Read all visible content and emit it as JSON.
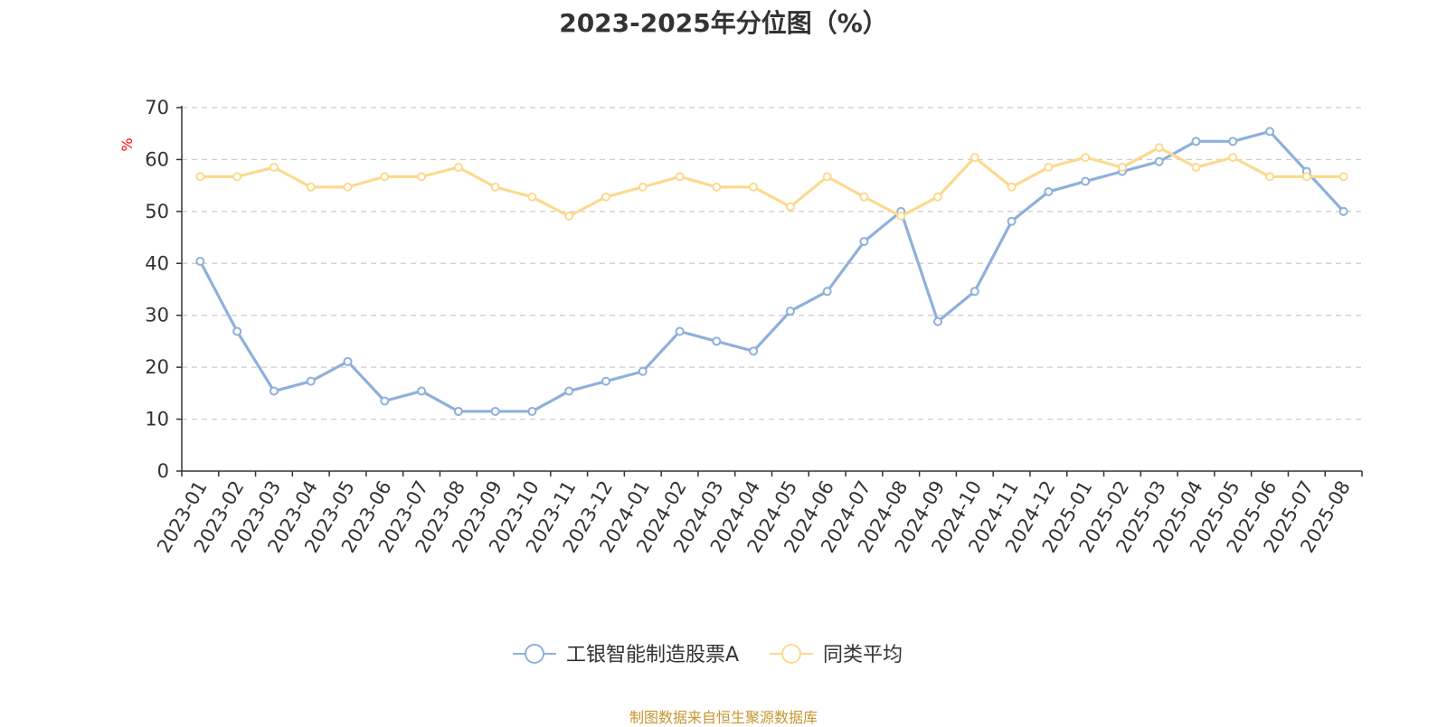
{
  "chart_data": {
    "type": "line",
    "title": "2023-2025年分位图（%）",
    "ylabel": "%",
    "ylim": [
      0,
      70
    ],
    "yticks": [
      0,
      10,
      20,
      30,
      40,
      50,
      60,
      70
    ],
    "grid": true,
    "legend_position": "bottom-center",
    "categories": [
      "2023-01",
      "2023-02",
      "2023-03",
      "2023-04",
      "2023-05",
      "2023-06",
      "2023-07",
      "2023-08",
      "2023-09",
      "2023-10",
      "2023-11",
      "2023-12",
      "2024-01",
      "2024-02",
      "2024-03",
      "2024-04",
      "2024-05",
      "2024-06",
      "2024-07",
      "2024-08",
      "2024-09",
      "2024-10",
      "2024-11",
      "2024-12",
      "2025-01",
      "2025-02",
      "2025-03",
      "2025-04",
      "2025-05",
      "2025-06",
      "2025-07",
      "2025-08"
    ],
    "series": [
      {
        "name": "工银智能制造股票A",
        "color": "#8eb0db",
        "values": [
          40.4,
          26.9,
          15.4,
          17.3,
          21.1,
          13.5,
          15.4,
          11.5,
          11.5,
          11.5,
          15.4,
          17.3,
          19.2,
          26.9,
          25.0,
          23.1,
          30.8,
          34.6,
          44.2,
          50.0,
          28.8,
          34.6,
          48.1,
          53.8,
          55.8,
          57.7,
          59.6,
          63.5,
          63.5,
          65.4,
          57.7,
          50.0
        ]
      },
      {
        "name": "同类平均",
        "color": "#fcd98f",
        "values": [
          56.7,
          56.7,
          58.5,
          54.7,
          54.7,
          56.7,
          56.7,
          58.5,
          54.7,
          52.8,
          49.1,
          52.8,
          54.7,
          56.7,
          54.7,
          54.7,
          50.9,
          56.7,
          52.8,
          49.1,
          52.8,
          60.4,
          54.7,
          58.5,
          60.4,
          58.5,
          62.3,
          58.5,
          60.4,
          56.7,
          56.7,
          56.7
        ]
      }
    ]
  },
  "source_text": "制图数据来自恒生聚源数据库"
}
